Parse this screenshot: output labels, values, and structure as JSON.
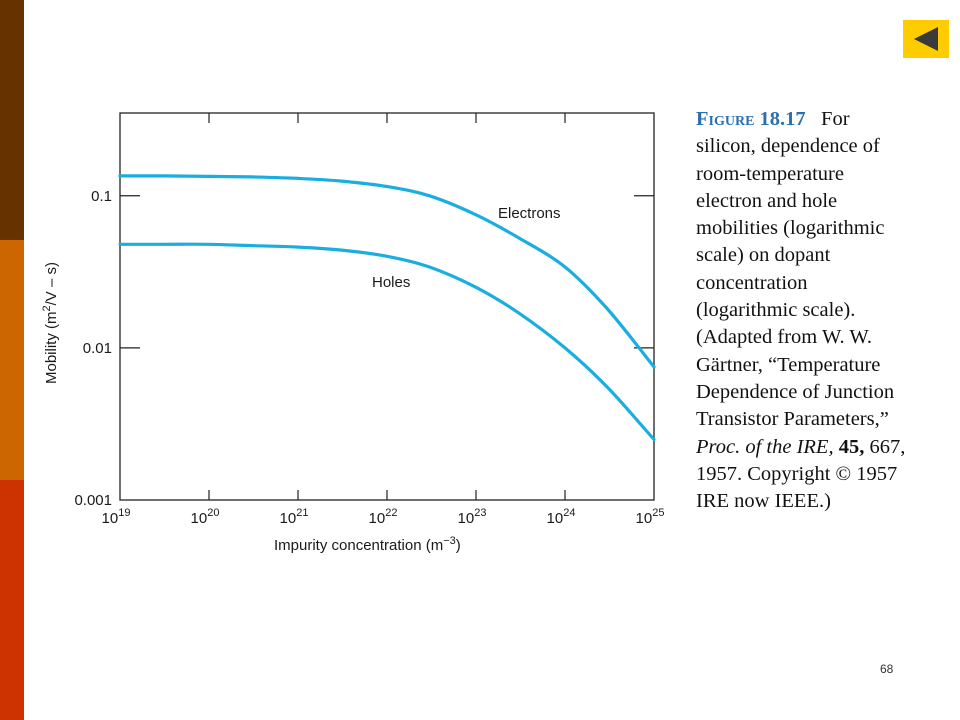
{
  "theme": {
    "bar_colors": [
      "#663300",
      "#cc6600",
      "#cc3300"
    ],
    "back_button_color": "#ffcc00",
    "curve_color": "#1aaee0"
  },
  "navigation": {
    "back_icon": "triangle-left-icon"
  },
  "chart_data": {
    "type": "line",
    "x_scale": "log",
    "y_scale": "log",
    "xlim": [
      1e+19,
      1e+25
    ],
    "ylim": [
      0.001,
      0.35
    ],
    "x_ticks": [
      {
        "base": "10",
        "exp": "19",
        "value": 1e+19
      },
      {
        "base": "10",
        "exp": "20",
        "value": 1e+20
      },
      {
        "base": "10",
        "exp": "21",
        "value": 1e+21
      },
      {
        "base": "10",
        "exp": "22",
        "value": 1e+22
      },
      {
        "base": "10",
        "exp": "23",
        "value": 1e+23
      },
      {
        "base": "10",
        "exp": "24",
        "value": 1e+24
      },
      {
        "base": "10",
        "exp": "25",
        "value": 1e+25
      }
    ],
    "y_ticks": [
      {
        "label": "0.1",
        "value": 0.1
      },
      {
        "label": "0.01",
        "value": 0.01
      },
      {
        "label": "0.001",
        "value": 0.001
      }
    ],
    "xlabel": {
      "prefix": "Impurity concentration (m",
      "sup": "−3",
      "suffix": ")"
    },
    "ylabel": {
      "prefix": "Mobility (m",
      "sup": "2",
      "suffix": "/V – s)"
    },
    "grid": false,
    "series": [
      {
        "name": "Electrons",
        "x": [
          1e+19,
          3e+19,
          1e+20,
          3e+20,
          1e+21,
          3e+21,
          1e+22,
          3e+22,
          1e+23,
          3e+23,
          1e+24,
          3e+24,
          1e+25
        ],
        "y": [
          0.135,
          0.135,
          0.134,
          0.133,
          0.13,
          0.125,
          0.115,
          0.1,
          0.075,
          0.053,
          0.034,
          0.018,
          0.0075
        ]
      },
      {
        "name": "Holes",
        "x": [
          1e+19,
          3e+19,
          1e+20,
          3e+20,
          1e+21,
          3e+21,
          1e+22,
          3e+22,
          1e+23,
          3e+23,
          1e+24,
          3e+24,
          1e+25
        ],
        "y": [
          0.048,
          0.048,
          0.048,
          0.047,
          0.046,
          0.044,
          0.04,
          0.034,
          0.025,
          0.017,
          0.01,
          0.0055,
          0.0025
        ]
      }
    ]
  },
  "caption": {
    "figure_label": "Figure",
    "figure_number": "18.17",
    "line1_rest": "For",
    "lines": [
      "silicon, dependence of",
      "room-temperature",
      "electron and hole",
      "mobilities (logarithmic",
      "scale) on dopant",
      "concentration",
      "(logarithmic scale).",
      "(Adapted from W. W.",
      "Gärtner, “Temperature",
      "Dependence of Junction",
      "Transistor Parameters,”"
    ],
    "journal": "Proc. of the IRE,",
    "volume": "45,",
    "pages": "667,",
    "copyright_line": "1957. Copyright © 1957",
    "last_line": "IRE now IEEE.)"
  },
  "page_number": "68"
}
